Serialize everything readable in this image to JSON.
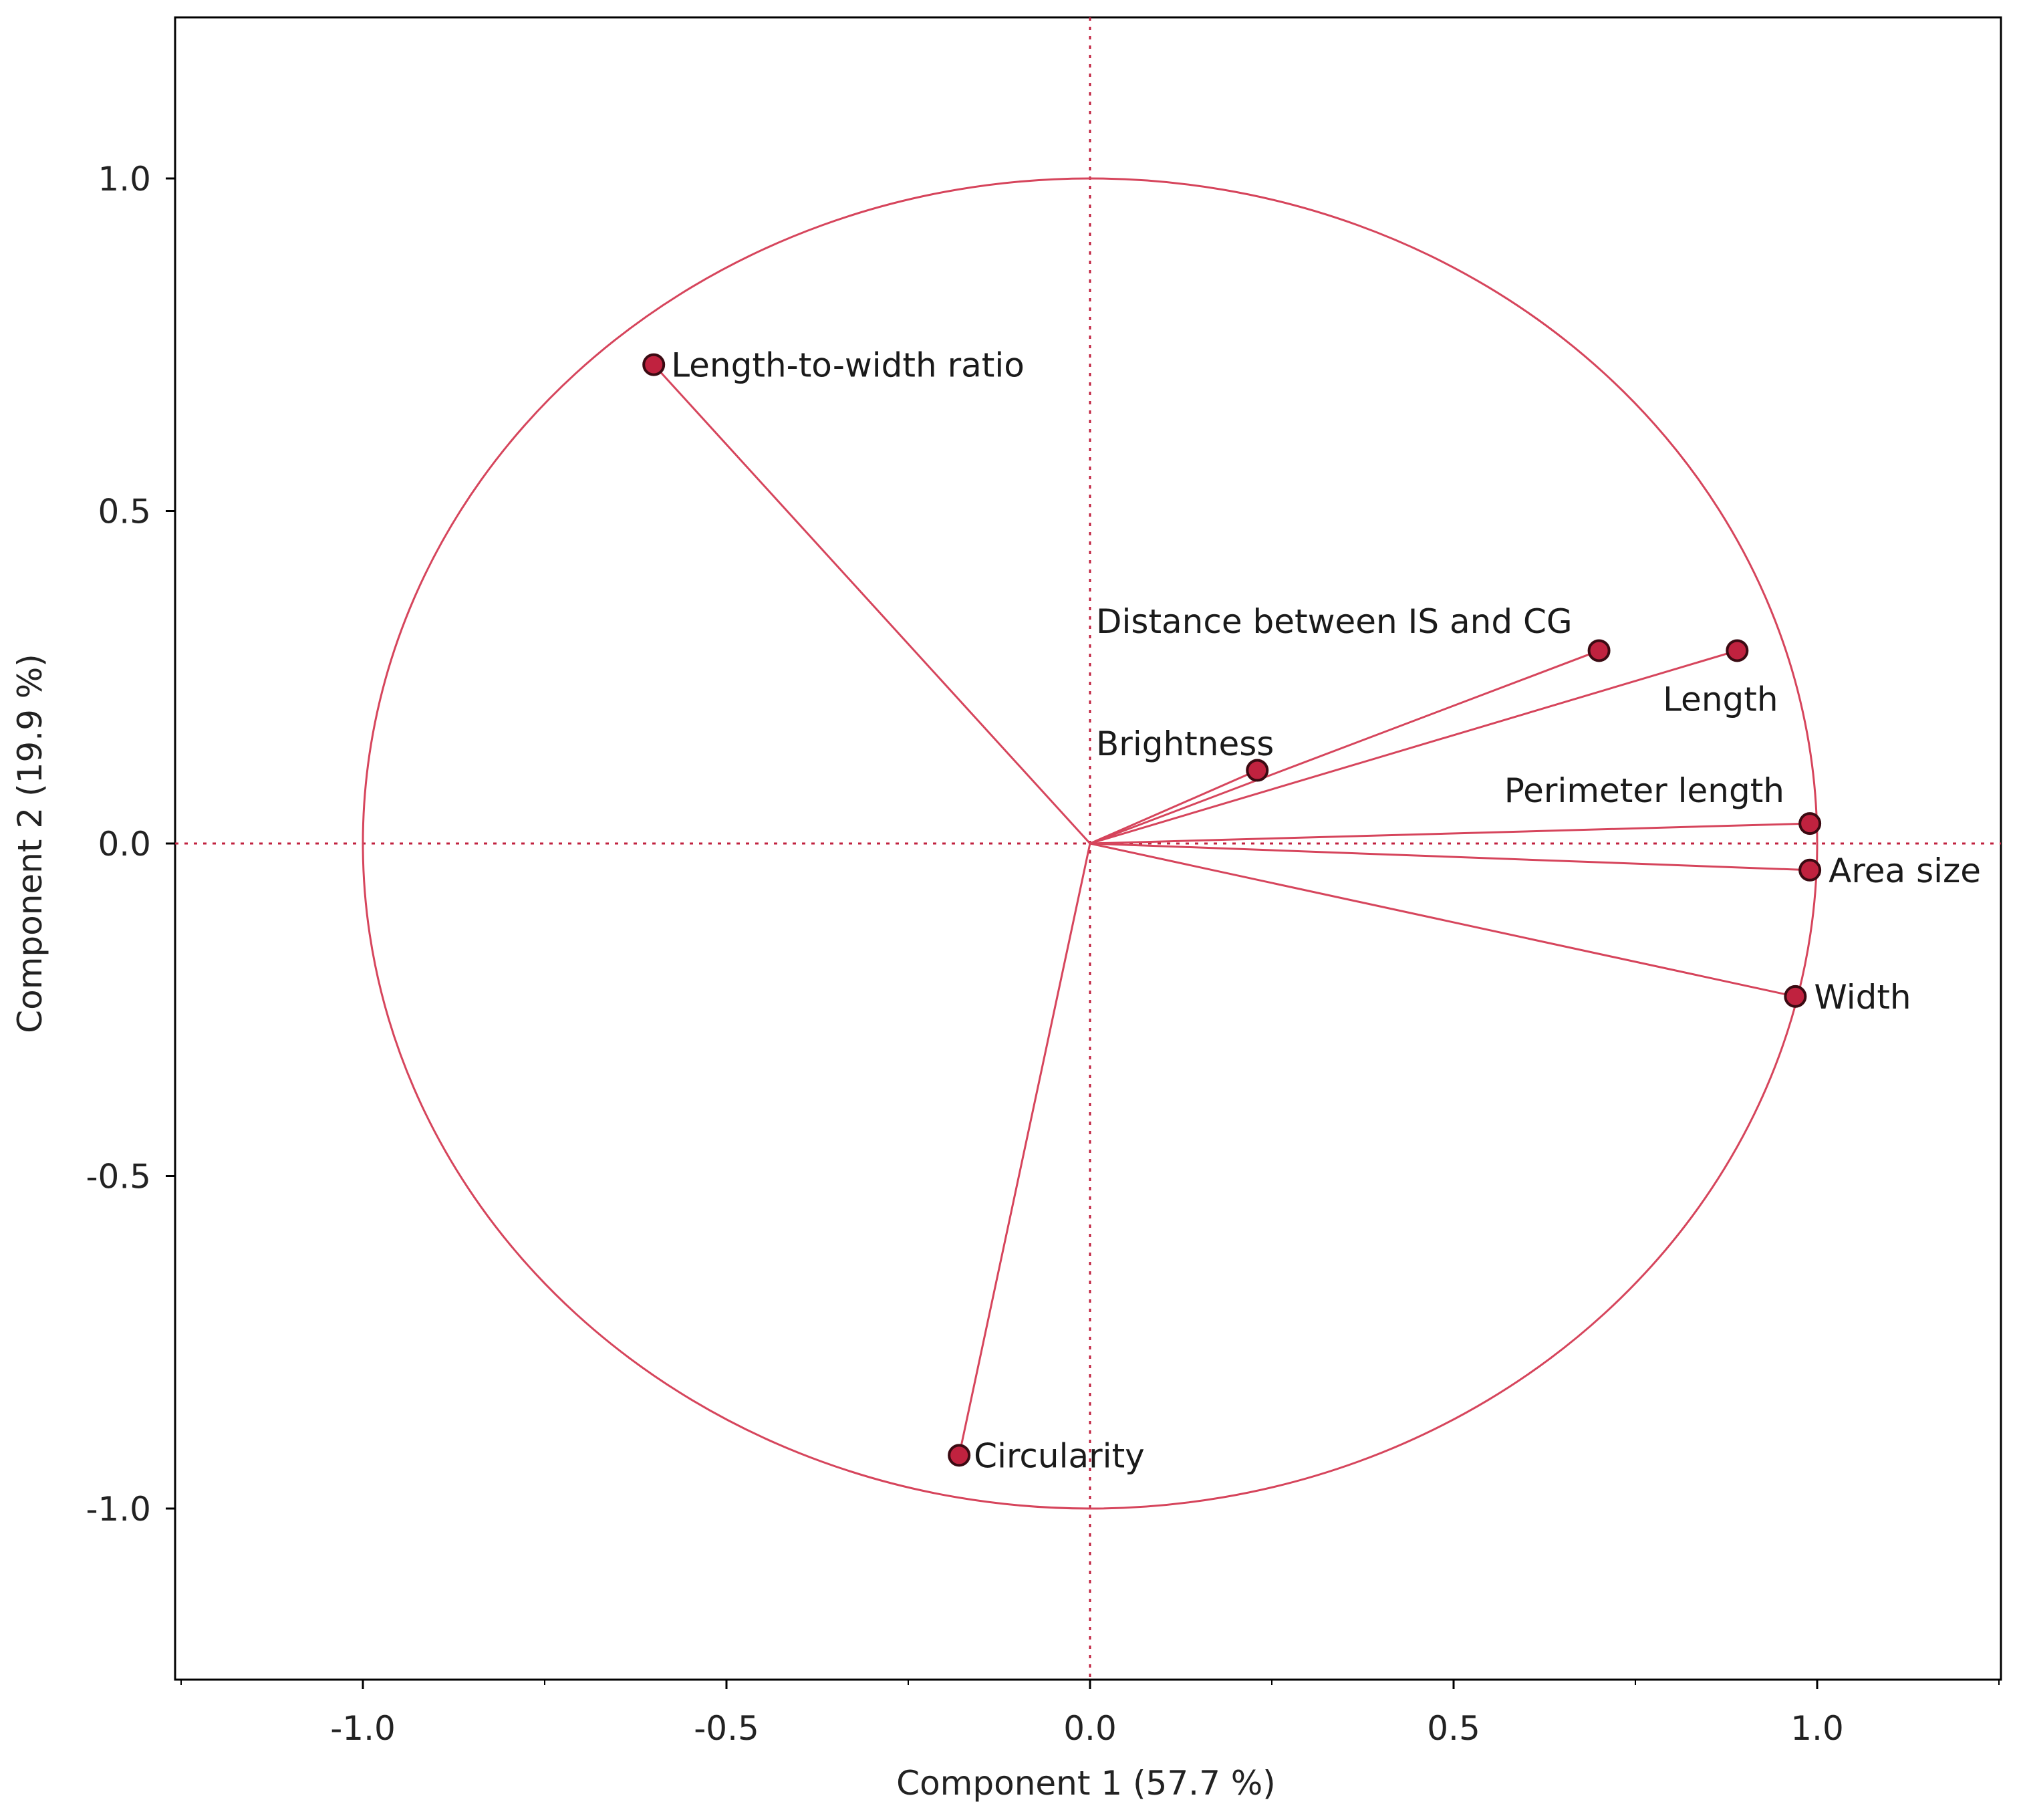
{
  "chart_data": {
    "type": "scatter",
    "subtype": "pca-correlation-circle",
    "title": "",
    "xlabel": "Component 1  (57.7 %)",
    "ylabel": "Component 2  (19.9 %)",
    "xlim": [
      -1.25,
      1.25
    ],
    "ylim": [
      -1.25,
      1.25
    ],
    "xticks": [
      -1.0,
      -0.5,
      0.0,
      0.5,
      1.0
    ],
    "xtick_labels": [
      "-1.0",
      "-0.5",
      "0.0",
      "0.5",
      "1.0"
    ],
    "yticks": [
      -1.0,
      -0.5,
      0.0,
      0.5,
      1.0
    ],
    "ytick_labels": [
      "-1.0",
      "-0.5",
      "0.0",
      "0.5",
      "1.0"
    ],
    "unit_circle_radius": 1.0,
    "reference_lines": {
      "x": 0,
      "y": 0,
      "style": "dotted"
    },
    "grid": false,
    "colors": {
      "vector": "#d6455c",
      "marker": "#c0223f",
      "marker_edge": "#3a0a12"
    },
    "loadings": [
      {
        "name": "Length-to-width ratio",
        "x": -0.6,
        "y": 0.72
      },
      {
        "name": "Distance between IS and CG",
        "x": 0.7,
        "y": 0.29
      },
      {
        "name": "Length",
        "x": 0.89,
        "y": 0.29
      },
      {
        "name": "Brightness",
        "x": 0.23,
        "y": 0.11
      },
      {
        "name": "Perimeter length",
        "x": 0.99,
        "y": 0.03
      },
      {
        "name": "Area size",
        "x": 0.99,
        "y": -0.04
      },
      {
        "name": "Width",
        "x": 0.97,
        "y": -0.23
      },
      {
        "name": "Circularity",
        "x": -0.18,
        "y": -0.92
      }
    ]
  }
}
